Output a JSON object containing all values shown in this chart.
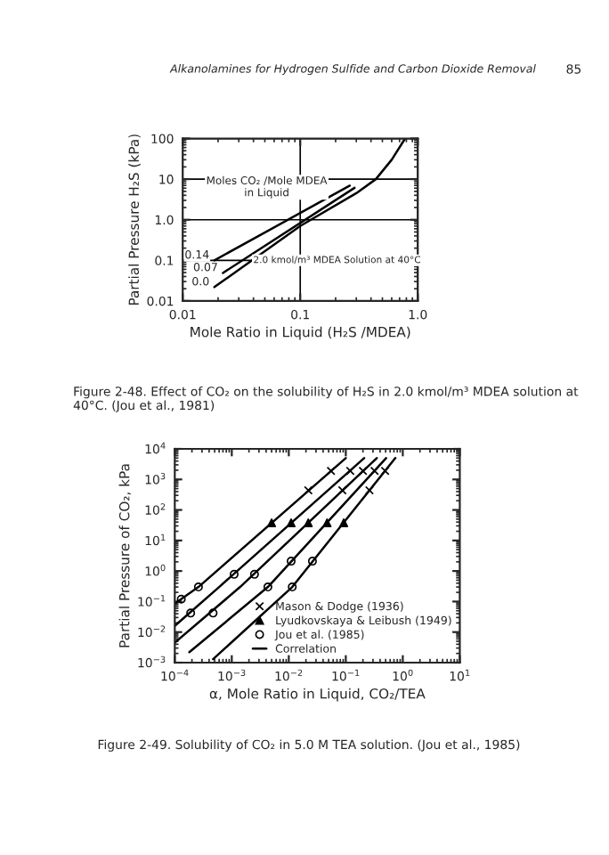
{
  "chart_data": [
    {
      "type": "line",
      "xlabel": "Mole Ratio in Liquid (H₂S /MDEA)",
      "ylabel": "Partial Pressure H₂S (kPa)",
      "annotations": [
        "Alkanolamines for Hydrogen Sulfide and Carbon Dioxide Removal",
        "85",
        "Figure 2-48. Effect of CO₂ on the solubility of H₂S in 2.0 kmol/m³ MDEA solution at 40°C. (Jou et al., 1981)",
        "Moles CO₂ /Mole MDEA\nin Liquid",
        "2.0 kmol/m³ MDEA Solution at 40°C"
      ],
      "log": "xy",
      "xlim": [
        0.01,
        1.0
      ],
      "ylim": [
        0.01,
        100
      ],
      "xticks": [
        0.01,
        0.1,
        {
          "value": 1,
          "label": "1.0"
        }
      ],
      "yticks": [
        0.01,
        0.1,
        {
          "value": 1,
          "label": "1.0"
        },
        10,
        100
      ],
      "grid": true,
      "legend": false,
      "marker": "none",
      "line_style": "solid",
      "series": [
        {
          "name": "0.14",
          "color": "#000000",
          "x": [
            0.0186,
            0.264
          ],
          "values": [
            0.1,
            6.9
          ]
        },
        {
          "name": "0.07",
          "color": "#000000",
          "x": [
            0.022,
            0.29
          ],
          "values": [
            0.049,
            6.1
          ]
        },
        {
          "name": "0.0",
          "color": "#000000",
          "x": [
            0.0186,
            0.1,
            0.3,
            0.44,
            0.6,
            0.78
          ],
          "values": [
            0.022,
            0.7,
            4.5,
            10,
            30,
            100
          ]
        }
      ]
    },
    {
      "type": "line",
      "xlabel": "α, Mole Ratio in Liquid, CO₂/TEA",
      "ylabel": "Partial Pressure of CO₂, kPa",
      "annotations": [
        "Figure 2-49. Solubility of CO₂ in 5.0 M TEA solution. (Jou et al., 1985)"
      ],
      "log": "xy",
      "xlim": [
        0.0001,
        10
      ],
      "ylim": [
        0.001,
        10000
      ],
      "xticks": [
        {
          "value": 0.0001,
          "label": "10$^{−4}$"
        },
        {
          "value": 0.001,
          "label": "10$^{−3}$"
        },
        {
          "value": 0.01,
          "label": "10$^{−2}$"
        },
        {
          "value": 0.1,
          "label": "10$^{−1}$"
        },
        {
          "value": 1,
          "label": "10$^{0}$"
        },
        {
          "value": 10,
          "label": "10$^{1}$"
        }
      ],
      "yticks": [
        {
          "value": 0.001,
          "label": "10$^{−3}$"
        },
        {
          "value": 0.01,
          "label": "10$^{−2}$"
        },
        {
          "value": 0.1,
          "label": "10$^{−1}$"
        },
        {
          "value": 1,
          "label": "10$^{0}$"
        },
        {
          "value": 10,
          "label": "10$^{1}$"
        },
        {
          "value": 100,
          "label": "10$^{2}$"
        },
        {
          "value": 1000,
          "label": "10$^{3}$"
        },
        {
          "value": 10000,
          "label": "10$^{4}$"
        }
      ],
      "grid": false,
      "legend": "bottom right",
      "line_style": "solid",
      "series": [
        {
          "name": "Mason & Dodge (1936)",
          "type": "scatter",
          "marker": "cross",
          "color": "#000000",
          "x": [
            0.055,
            0.12,
            0.2,
            0.32,
            0.49,
            0.022,
            0.087,
            0.26
          ],
          "values": [
            1900,
            1900,
            1900,
            1900,
            1900,
            440,
            440,
            440
          ]
        },
        {
          "name": "Lyudkovskaya & Leibush (1949)",
          "type": "scatter",
          "marker": "triangle",
          "color": "#000000",
          "x": [
            0.005,
            0.011,
            0.022,
            0.047,
            0.092
          ],
          "values": [
            38,
            38,
            38,
            38,
            38
          ]
        },
        {
          "name": "Jou et al. (1985)",
          "type": "scatter",
          "marker": "circle",
          "color": "#000000",
          "x": [
            0.00026,
            0.00013,
            0.0011,
            0.0025,
            0.011,
            0.026,
            0.0115,
            0.0043,
            0.00047,
            0.00019
          ],
          "values": [
            0.3,
            0.12,
            0.78,
            0.78,
            2.1,
            2.1,
            0.3,
            0.3,
            0.042,
            0.042
          ]
        },
        {
          "name": "Correlation",
          "marker": "none",
          "color": "#000000",
          "x": [
            0.0001,
            0.00026,
            0.1
          ],
          "values": [
            0.085,
            0.3,
            5000
          ]
        },
        {
          "marker": "none",
          "color": "#000000",
          "x": [
            0.0001,
            0.0006,
            0.21
          ],
          "values": [
            0.016,
            0.3,
            5000
          ]
        },
        {
          "marker": "none",
          "color": "#000000",
          "x": [
            0.0001,
            0.0014,
            0.35
          ],
          "values": [
            0.0045,
            0.3,
            5000
          ]
        },
        {
          "marker": "none",
          "color": "#000000",
          "x": [
            0.00018,
            0.0043,
            0.51
          ],
          "values": [
            0.0022,
            0.3,
            5000
          ]
        },
        {
          "marker": "none",
          "color": "#000000",
          "x": [
            0.00047,
            0.0115,
            0.74
          ],
          "values": [
            0.0013,
            0.3,
            5000
          ]
        }
      ]
    }
  ]
}
